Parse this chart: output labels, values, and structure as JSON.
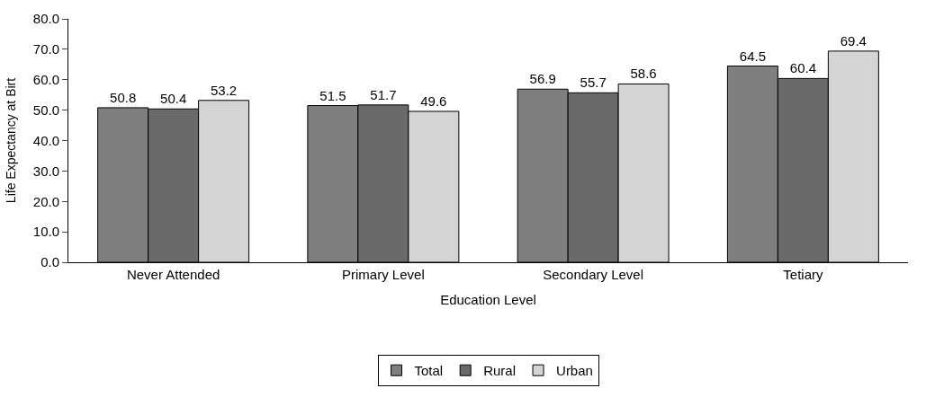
{
  "chart_data": {
    "type": "bar",
    "xlabel": "Education Level",
    "ylabel": "Life Expectancy at Birt",
    "categories": [
      "Never Attended",
      "Primary Level",
      "Secondary Level",
      "Tetiary"
    ],
    "series": [
      {
        "name": "Total",
        "color": "#7f7f7f",
        "values": [
          50.8,
          51.5,
          56.9,
          64.5
        ]
      },
      {
        "name": "Rural",
        "color": "#6a6a6a",
        "values": [
          50.4,
          51.7,
          55.7,
          60.4
        ]
      },
      {
        "name": "Urban",
        "color": "#d4d4d4",
        "values": [
          53.2,
          49.6,
          58.6,
          69.4
        ]
      }
    ],
    "ylim": [
      0,
      80
    ],
    "yticks": [
      {
        "value": 0,
        "label": "0.0"
      },
      {
        "value": 10,
        "label": "10.0"
      },
      {
        "value": 20,
        "label": "20.0"
      },
      {
        "value": 30,
        "label": "30.0"
      },
      {
        "value": 40,
        "label": "40.0"
      },
      {
        "value": 50,
        "label": "50.0"
      },
      {
        "value": 60,
        "label": "60.0"
      },
      {
        "value": 70,
        "label": "70.0"
      },
      {
        "value": 80,
        "label": "80.0"
      }
    ],
    "data_labels": true,
    "legend": "bottom"
  }
}
